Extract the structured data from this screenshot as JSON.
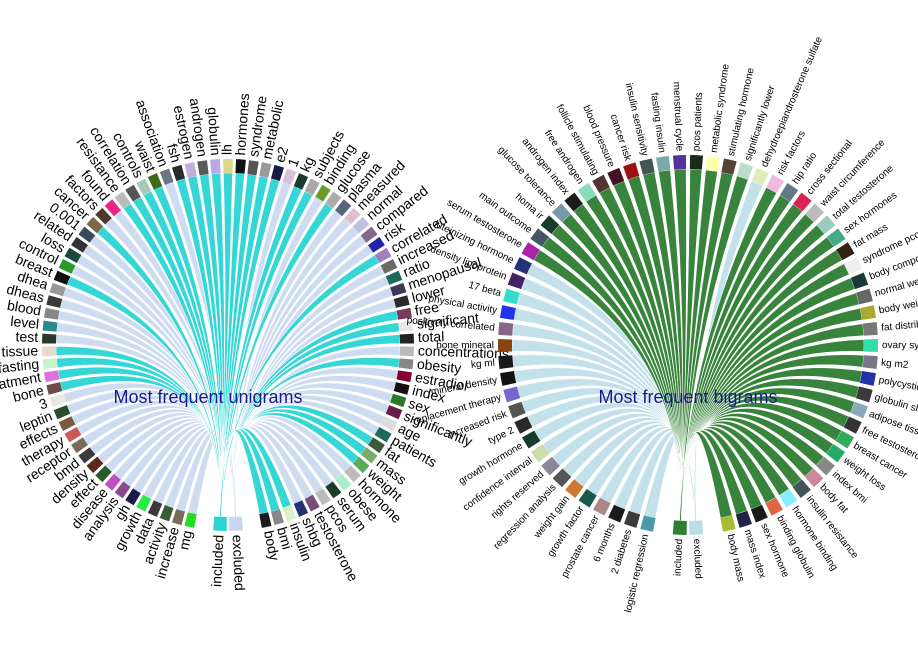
{
  "charts": [
    {
      "title": "Most frequent unigrams",
      "type": "chord",
      "highlight_color": "#2ad4d4",
      "base_color": "#c6d6ee",
      "source_terms": [
        "excluded",
        "included"
      ],
      "source_colors": [
        "#c6d6ee",
        "#2ad4d4"
      ],
      "terms": [
        "mg",
        "increase",
        "activity",
        "data",
        "growth",
        "gh",
        "analysis",
        "disease",
        "effect",
        "density",
        "bmd",
        "receptor",
        "therapy",
        "effects",
        "leptin",
        "3",
        "bone",
        "treatment",
        "fasting",
        "tissue",
        "test",
        "level",
        "blood",
        "dheas",
        "dhea",
        "breast",
        "control",
        "loss",
        "related",
        "0.001",
        "cancer",
        "factors",
        "found",
        "resistance",
        "correlation",
        "controls",
        "waist",
        "association",
        "fsh",
        "estrogen",
        "androgen",
        "globulin",
        "lh",
        "hormones",
        "syndrome",
        "metabolic",
        "e2",
        "1",
        "kg",
        "subjects",
        "binding",
        "glucose",
        "plasma",
        "measured",
        "normal",
        "compared",
        "risk",
        "correlated",
        "increased",
        "ratio",
        "menopausal",
        "lower",
        "free",
        "significant",
        "total",
        "concentrations",
        "obesity",
        "estradiol",
        "index",
        "sex",
        "significantly",
        "age",
        "patients",
        "fat",
        "mass",
        "weight",
        "hormone",
        "obese",
        "serum",
        "pcos",
        "testosterone",
        "shbg",
        "insulin",
        "bmi",
        "body"
      ],
      "colors": [
        "#22dd22",
        "#7a6a5a",
        "#3a5a3a",
        "#3a3a3a",
        "#22ee44",
        "#1a1a4a",
        "#8a4a8a",
        "#c050c0",
        "#2a5a2a",
        "#5a2a1a",
        "#3a3a3a",
        "#7a6a5a",
        "#c85a5a",
        "#7a5a3a",
        "#2a4a2a",
        "#e8e8e8",
        "#6a4a4a",
        "#e070e0",
        "#ccf0cc",
        "#e8d8d0",
        "#2a3a2a",
        "#2a8a8a",
        "#888888",
        "#3a3a3a",
        "#999999",
        "#111111",
        "#2a9a2a",
        "#1a4a3a",
        "#333333",
        "#3a4a5a",
        "#7a6a4a",
        "#4a3a2a",
        "#ee2288",
        "#bbbbbb",
        "#555555",
        "#a8c8b8",
        "#3a6a1a",
        "#667788",
        "#2a2a2a",
        "#bfb0d8",
        "#5a5a5a",
        "#b8a8e8",
        "#d8d888",
        "#111111",
        "#555555",
        "#999999",
        "#1a1a4a",
        "#d8c0e0",
        "#1a3a2a",
        "#a8a8a8",
        "#6a9a2a",
        "#aaaaaa",
        "#556677",
        "#e0c0d0",
        "#c0c0e0",
        "#886688",
        "#2222aa",
        "#a080c0",
        "#6a6a6a",
        "#1a6a5a",
        "#3a3a5a",
        "#2a2a2a",
        "#7a3a5a",
        "#e8e8e8",
        "#222222",
        "#bbbbbb",
        "#888888",
        "#880033",
        "#111111",
        "#2a7a2a",
        "#6a1a4a",
        "#dddddd",
        "#1a6a5a",
        "#3a5a3a",
        "#7aaa6a",
        "#5aaa5a",
        "#bbbbbb",
        "#aaeecc",
        "#1a3a2a",
        "#bbbbbb",
        "#7a4a7a",
        "#223377",
        "#ddeecc",
        "#888888",
        "#1a1a1a"
      ],
      "included_terms": [
        "insulin",
        "bmi",
        "body",
        "mass",
        "weight",
        "fat",
        "obesity",
        "total",
        "free",
        "significant",
        "correlated",
        "glucose",
        "metabolic",
        "syndrome",
        "hormones",
        "lh",
        "globulin",
        "androgen",
        "estrogen",
        "fsh",
        "waist",
        "controls",
        "correlation",
        "resistance",
        "cancer",
        "breast",
        "tissue",
        "bone",
        "fasting",
        "treatment",
        "subjects",
        "kg",
        "e2"
      ]
    },
    {
      "title": "Most frequent bigrams",
      "type": "chord",
      "highlight_color": "#2e7d32",
      "base_color": "#b8dce8",
      "source_terms": [
        "excluded",
        "included"
      ],
      "source_colors": [
        "#b8dce8",
        "#2e7d32"
      ],
      "terms": [
        "logistic regression",
        "2 diabetes",
        "6 months",
        "prostate cancer",
        "growth factor",
        "weight gain",
        "regression analysis",
        "rights reserved",
        "confidence interval",
        "growth hormone",
        "type 2",
        "increased risk",
        "replacement therapy",
        "mineral density",
        "kg ml",
        "bone mineral",
        "positively correlated",
        "physical activity",
        "17 beta",
        "density lipoprotein",
        "luteinizing hormone",
        "serum testosterone",
        "main outcome",
        "homa ir",
        "glucose tolerance",
        "androgen index",
        "free androgen",
        "follicle stimulating",
        "blood pressure",
        "cancer risk",
        "insulin sensitivity",
        "fasting insulin",
        "menstrual cycle",
        "pcos patients",
        "metabolic syndrome",
        "stimulating hormone",
        "significantly lower",
        "dehydroepiandrosterone sulfate",
        "risk factors",
        "hip ratio",
        "cross sectional",
        "waist circumference",
        "total testosterone",
        "sex hormones",
        "fat mass",
        "syndrome pcos",
        "body composition",
        "normal weight",
        "body weight",
        "fat distribution",
        "ovary syndrome",
        "kg m2",
        "polycystic ovary",
        "globulin shbg",
        "adipose tissue",
        "free testosterone",
        "breast cancer",
        "weight loss",
        "index bmi",
        "body fat",
        "insulin resistance",
        "hormone binding",
        "binding globulin",
        "sex hormone",
        "mass index",
        "body mass"
      ],
      "colors": [
        "#4a9aa8",
        "#3a3a3a",
        "#1a1a1a",
        "#aa8888",
        "#1a5a4a",
        "#cc7733",
        "#555555",
        "#888899",
        "#ccddaa",
        "#1a3a2a",
        "#2a2a2a",
        "#555555",
        "#7766cc",
        "#111111",
        "#1a1a1a",
        "#884411",
        "#886688",
        "#2233ee",
        "#33ddcc",
        "#442266",
        "#223377",
        "#aa22aa",
        "#445566",
        "#1a3a2a",
        "#7799aa",
        "#1a1a1a",
        "#88ddbb",
        "#553333",
        "#441122",
        "#991111",
        "#445555",
        "#77aaaa",
        "#553399",
        "#1a2a1a",
        "#ffffaa",
        "#554433",
        "#bbddcc",
        "#ddeebb",
        "#eebbdd",
        "#667788",
        "#dd2255",
        "#bbbbbb",
        "#99ccbb",
        "#44aa88",
        "#332211",
        "#eeeeee",
        "#1a3a3a",
        "#666666",
        "#aaaa33",
        "#777777",
        "#33ddaa",
        "#777788",
        "#2233aa",
        "#3a3a3a",
        "#88aabb",
        "#333333",
        "#33aa55",
        "#22aa66",
        "#888888",
        "#cc8899",
        "#445555",
        "#88eeff",
        "#dd6644",
        "#1a1a1a",
        "#222244",
        "#aabb33"
      ],
      "included_terms": [
        "metabolic syndrome",
        "insulin resistance",
        "body mass",
        "mass index",
        "binding globulin",
        "hormone binding",
        "sex hormone",
        "body fat",
        "index bmi",
        "weight loss",
        "breast cancer",
        "free testosterone",
        "adipose tissue",
        "globulin shbg",
        "polycystic ovary",
        "kg m2",
        "ovary syndrome",
        "fat distribution",
        "body weight",
        "normal weight",
        "body composition",
        "syndrome pcos",
        "fat mass",
        "sex hormones",
        "total testosterone",
        "waist circumference",
        "cross sectional",
        "hip ratio",
        "risk factors",
        "significantly lower",
        "stimulating hormone",
        "pcos patients",
        "menstrual cycle",
        "fasting insulin",
        "insulin sensitivity",
        "cancer risk",
        "blood pressure",
        "follicle stimulating",
        "free androgen",
        "androgen index",
        "glucose tolerance",
        "homa ir",
        "main outcome",
        "serum testosterone"
      ]
    }
  ]
}
